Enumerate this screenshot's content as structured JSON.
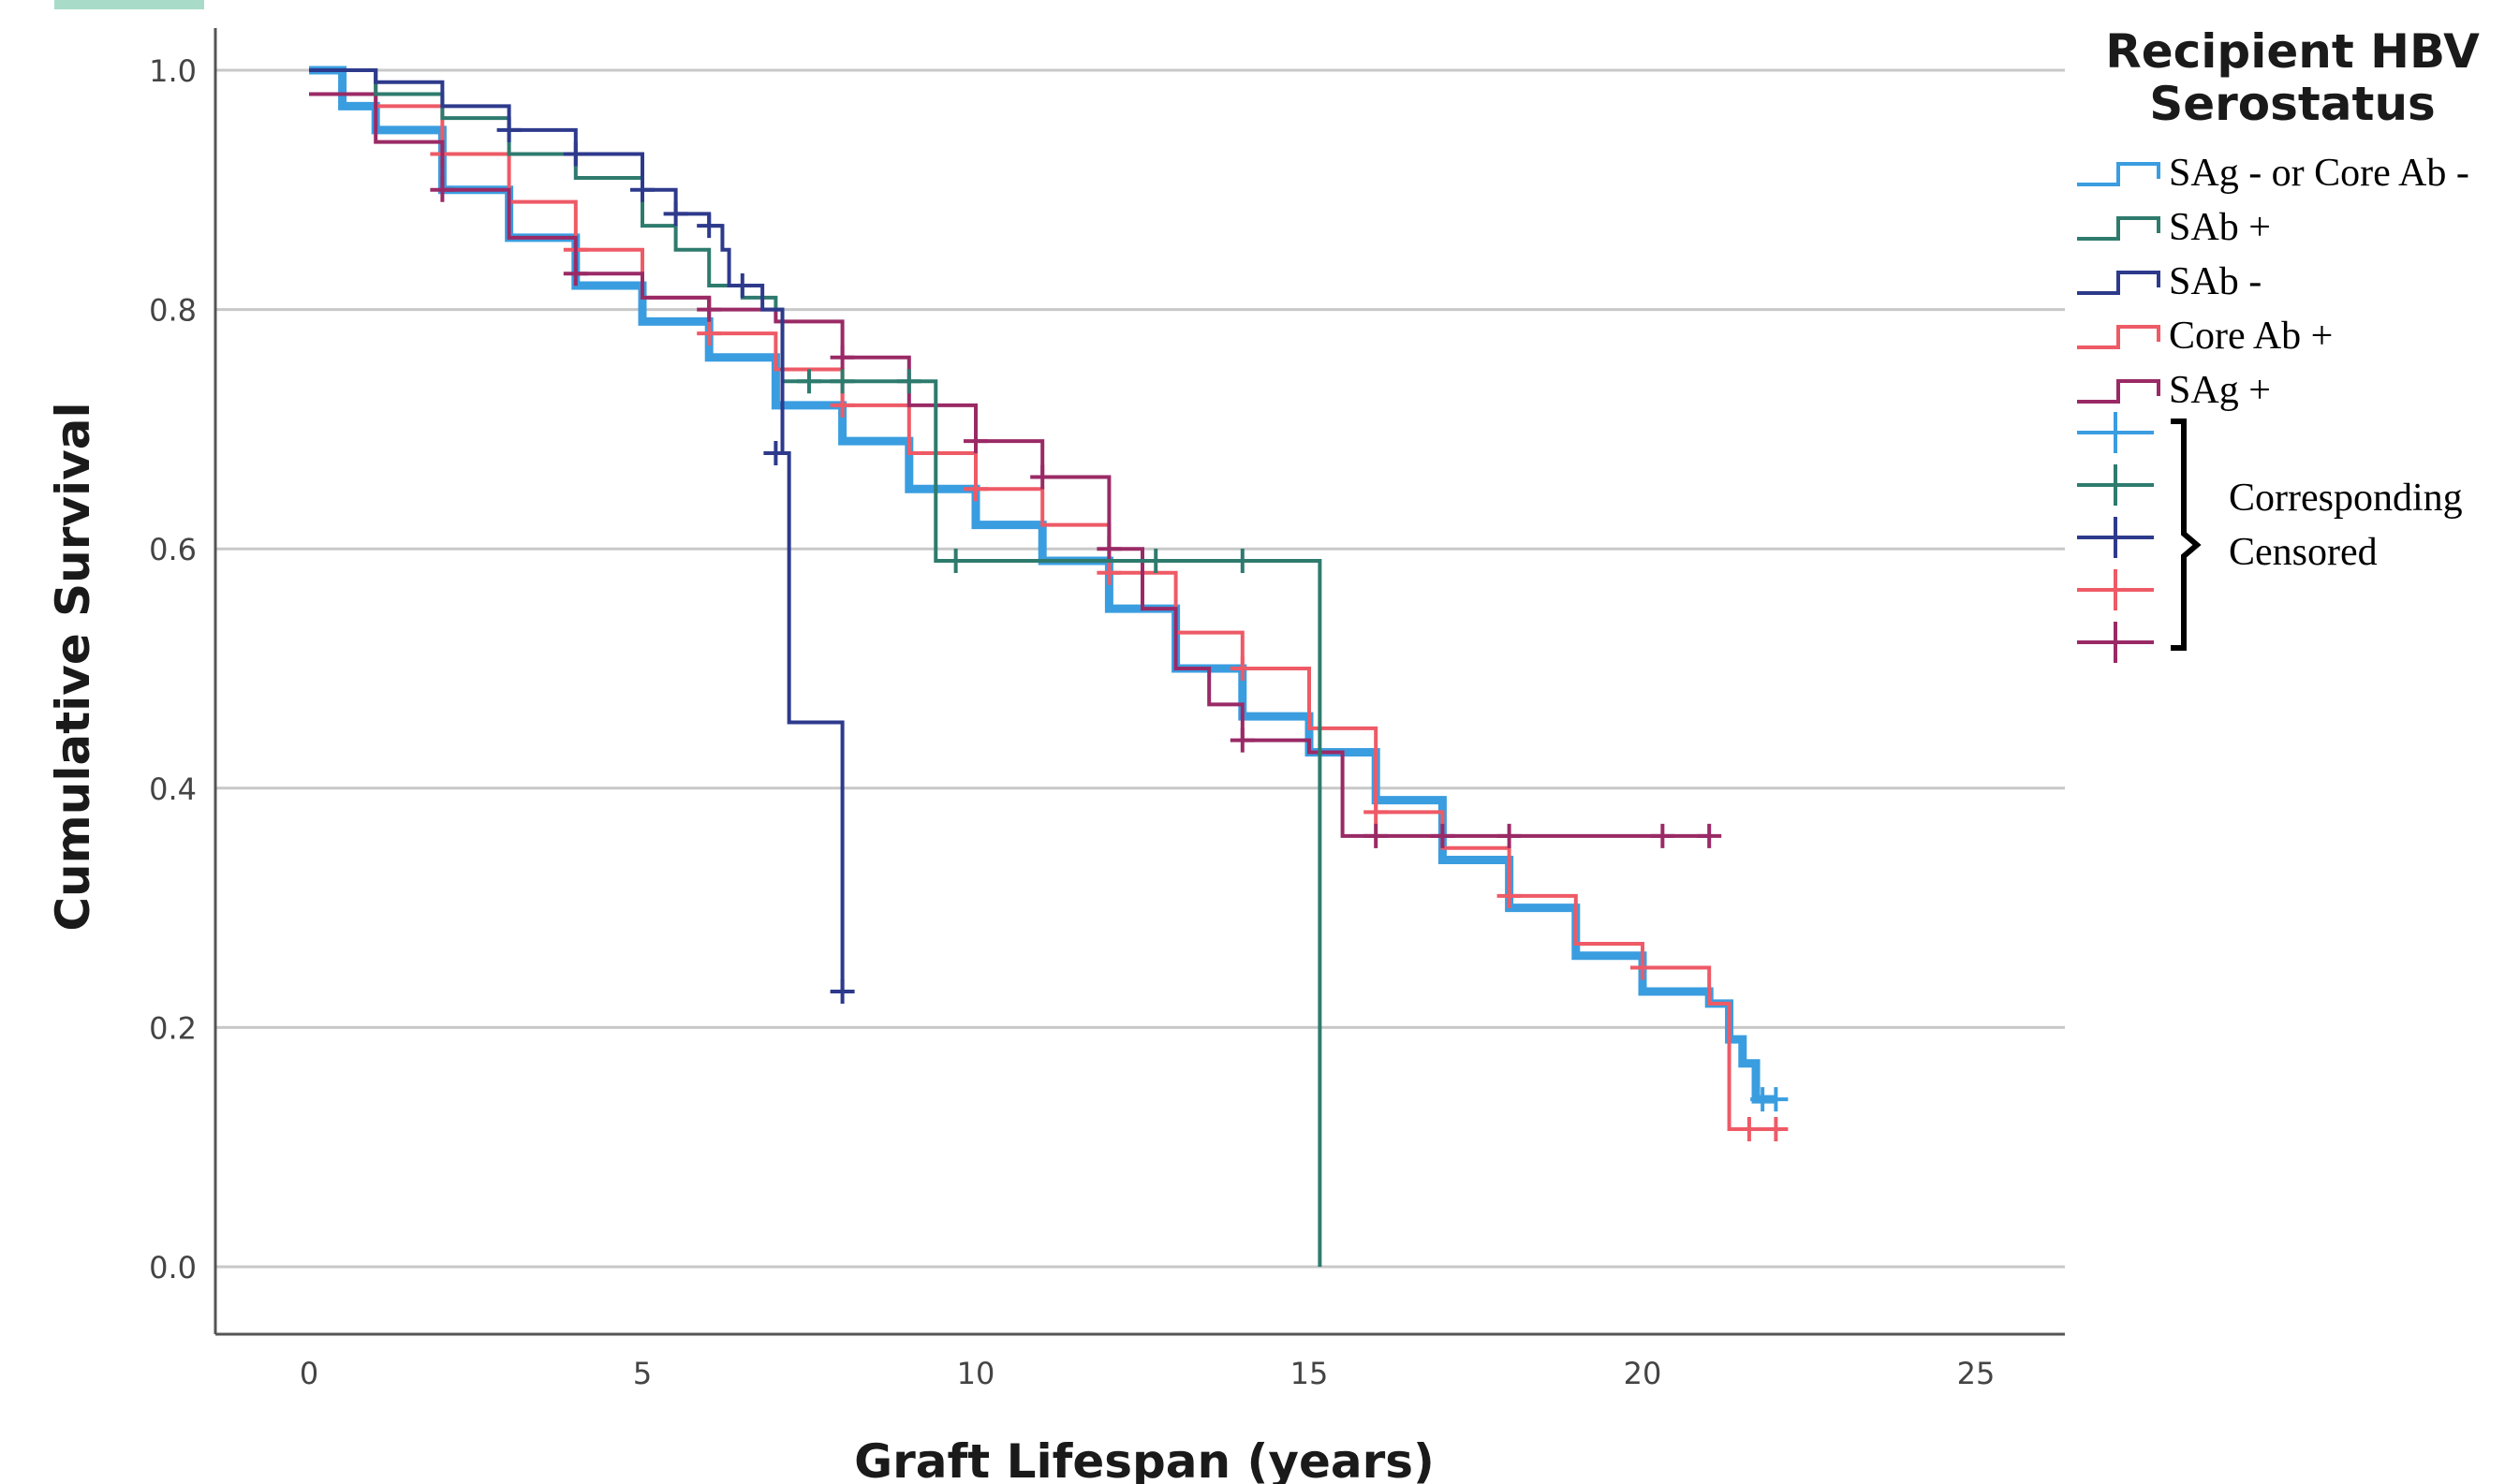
{
  "chart_data": {
    "type": "line",
    "title": "",
    "xlabel": "Graft Lifespan (years)",
    "ylabel": "Cumulative Survival",
    "xlim": [
      -0.5,
      26
    ],
    "ylim": [
      -0.055,
      1.05
    ],
    "xticks": [
      0,
      5,
      10,
      15,
      20,
      25
    ],
    "yticks": [
      0.0,
      0.2,
      0.4,
      0.6,
      0.8,
      1.0
    ],
    "xtick_labels": [
      "0",
      "5",
      "10",
      "15",
      "20",
      "25"
    ],
    "ytick_labels": [
      "0.0",
      "0.2",
      "0.4",
      "0.6",
      "0.8",
      "1.0"
    ],
    "grid": "horizontal",
    "legend_placement": "right",
    "legend_title": "Recipient HBV Serostatus",
    "censored_label": "Corresponding Censored",
    "series": [
      {
        "name": "SAg - or Core Ab -",
        "color": "#3a9de0",
        "x": [
          0,
          0.5,
          1,
          2,
          3,
          4,
          5,
          6,
          7,
          8,
          9,
          10,
          11,
          12,
          13,
          14,
          15,
          16,
          17,
          18,
          19,
          20,
          21,
          21.3,
          21.5,
          21.7,
          22
        ],
        "y": [
          1.0,
          0.97,
          0.95,
          0.9,
          0.86,
          0.82,
          0.79,
          0.76,
          0.72,
          0.69,
          0.65,
          0.62,
          0.59,
          0.55,
          0.5,
          0.46,
          0.43,
          0.39,
          0.34,
          0.3,
          0.26,
          0.23,
          0.22,
          0.19,
          0.17,
          0.14,
          0.14
        ],
        "censor_x": [
          21.8,
          22.0
        ],
        "censor_y": [
          0.14,
          0.14
        ]
      },
      {
        "name": "SAb +",
        "color": "#2e7b6e",
        "x": [
          0,
          1,
          2,
          3,
          4,
          5,
          5.5,
          6,
          6.5,
          7,
          7.1,
          8,
          9,
          9.3,
          9.4,
          10,
          12,
          14,
          15,
          15.15,
          15.16
        ],
        "y": [
          1.0,
          0.98,
          0.96,
          0.93,
          0.91,
          0.87,
          0.85,
          0.82,
          0.81,
          0.8,
          0.74,
          0.74,
          0.74,
          0.74,
          0.59,
          0.59,
          0.59,
          0.59,
          0.59,
          0.59,
          0.0
        ],
        "censor_x": [
          7.5,
          8.0,
          9.0,
          9.7,
          12.7,
          14.0
        ],
        "censor_y": [
          0.74,
          0.74,
          0.74,
          0.59,
          0.59,
          0.59
        ]
      },
      {
        "name": "SAb -",
        "color": "#2d3a8c",
        "x": [
          0,
          1,
          2,
          3,
          4,
          5,
          5.5,
          6,
          6.2,
          6.3,
          6.8,
          7.1,
          7.2,
          7.8,
          8.0
        ],
        "y": [
          1.0,
          0.99,
          0.97,
          0.95,
          0.93,
          0.9,
          0.88,
          0.87,
          0.85,
          0.82,
          0.8,
          0.68,
          0.455,
          0.455,
          0.23
        ],
        "censor_x": [
          3.0,
          4.0,
          5.0,
          5.5,
          6.0,
          6.5,
          7.0,
          8.0
        ],
        "censor_y": [
          0.95,
          0.93,
          0.9,
          0.88,
          0.87,
          0.82,
          0.68,
          0.23
        ]
      },
      {
        "name": "Core Ab +",
        "color": "#ee5a66",
        "x": [
          0,
          1,
          2,
          3,
          4,
          5,
          6,
          7,
          8,
          9,
          10,
          11,
          12,
          13,
          14,
          15,
          16,
          17,
          18,
          19,
          20,
          21,
          21.2,
          21.3,
          22
        ],
        "y": [
          1.0,
          0.97,
          0.93,
          0.89,
          0.85,
          0.81,
          0.78,
          0.75,
          0.72,
          0.68,
          0.65,
          0.62,
          0.58,
          0.53,
          0.5,
          0.45,
          0.38,
          0.35,
          0.31,
          0.27,
          0.25,
          0.22,
          0.22,
          0.115,
          0.115
        ],
        "censor_x": [
          2.0,
          4.0,
          6.0,
          8.0,
          10.0,
          12.0,
          14.0,
          16.0,
          18.0,
          20.0,
          21.6,
          22.0
        ],
        "censor_y": [
          0.93,
          0.85,
          0.78,
          0.72,
          0.65,
          0.58,
          0.5,
          0.38,
          0.31,
          0.25,
          0.115,
          0.115
        ]
      },
      {
        "name": "SAg +",
        "color": "#9a2a66",
        "x": [
          0,
          1,
          2,
          3,
          4,
          5,
          6,
          6.5,
          7,
          8,
          9,
          10,
          11,
          12,
          12.5,
          13,
          13.5,
          14,
          14.5,
          15,
          15.5,
          16,
          17,
          18,
          19,
          20,
          21
        ],
        "y": [
          0.98,
          0.94,
          0.9,
          0.86,
          0.83,
          0.81,
          0.8,
          0.8,
          0.79,
          0.76,
          0.72,
          0.69,
          0.66,
          0.6,
          0.55,
          0.5,
          0.47,
          0.44,
          0.44,
          0.43,
          0.36,
          0.36,
          0.36,
          0.36,
          0.36,
          0.36,
          0.36
        ],
        "censor_x": [
          2.0,
          4.0,
          6.0,
          8.0,
          10.0,
          11.0,
          12.0,
          14.0,
          16.0,
          17.0,
          18.0,
          20.3,
          21.0
        ],
        "censor_y": [
          0.9,
          0.83,
          0.8,
          0.76,
          0.69,
          0.66,
          0.6,
          0.44,
          0.36,
          0.36,
          0.36,
          0.36,
          0.36
        ]
      }
    ]
  }
}
